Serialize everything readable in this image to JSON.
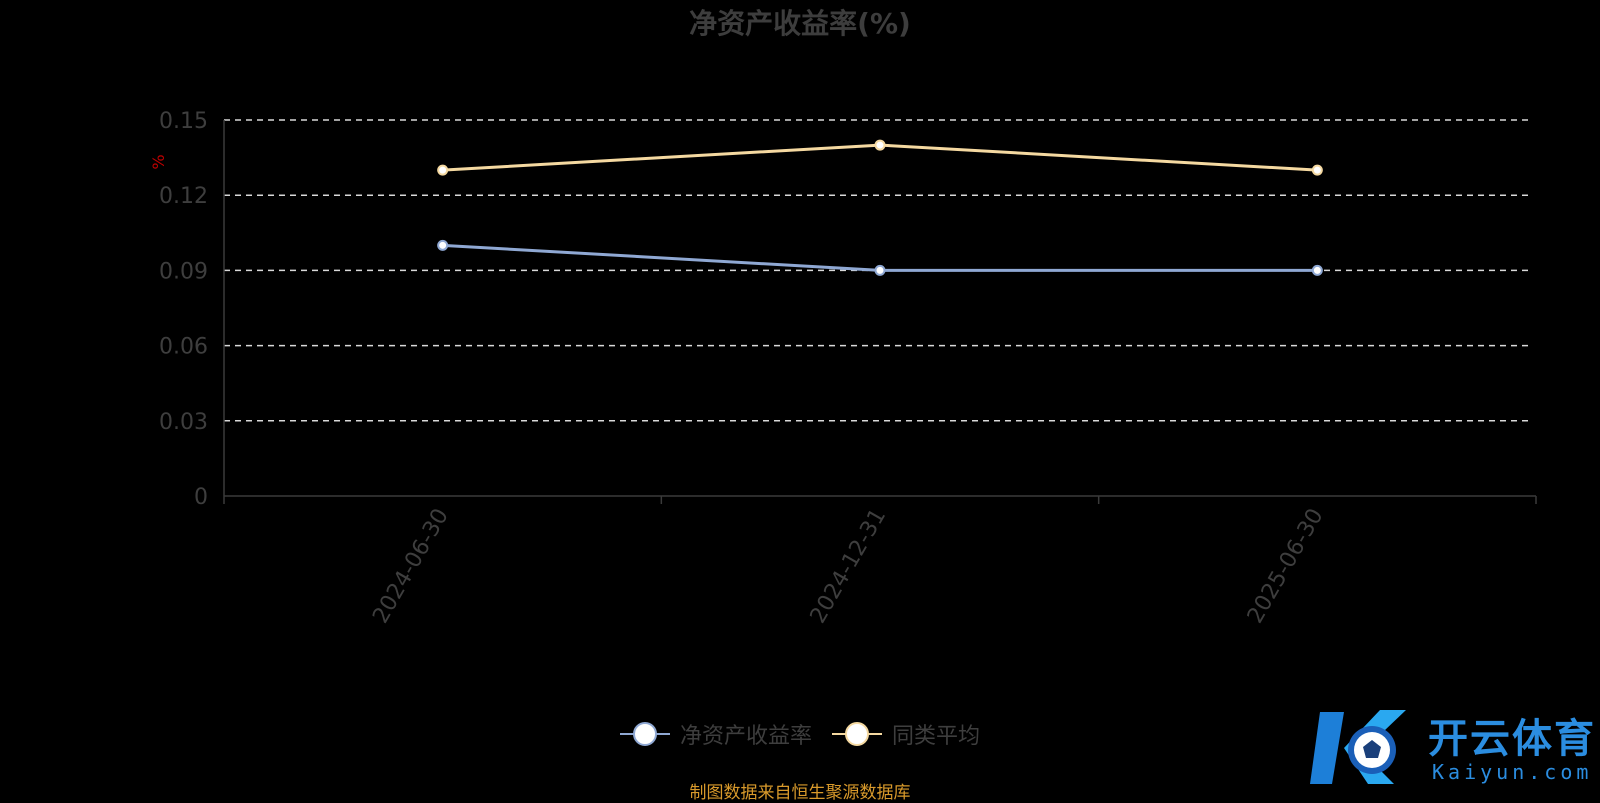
{
  "chart_data": {
    "type": "line",
    "title": "净资产收益率(%)",
    "ylabel": "%",
    "categories": [
      "2024-06-30",
      "2024-12-31",
      "2025-06-30"
    ],
    "ylim": [
      0,
      0.15
    ],
    "yticks": [
      "0",
      "0.03",
      "0.06",
      "0.09",
      "0.12",
      "0.15"
    ],
    "grid": true,
    "legend_position": "bottom",
    "series": [
      {
        "name": "净资产收益率",
        "values": [
          0.1,
          0.09,
          0.09
        ],
        "color": "#8fa8d3"
      },
      {
        "name": "同类平均",
        "values": [
          0.13,
          0.14,
          0.13
        ],
        "color": "#f5d9a1"
      }
    ]
  },
  "source_note": "制图数据来自恒生聚源数据库",
  "watermark": {
    "text": "开云体育",
    "sub": "Kaiyun.com",
    "color": "#2b8de0"
  }
}
